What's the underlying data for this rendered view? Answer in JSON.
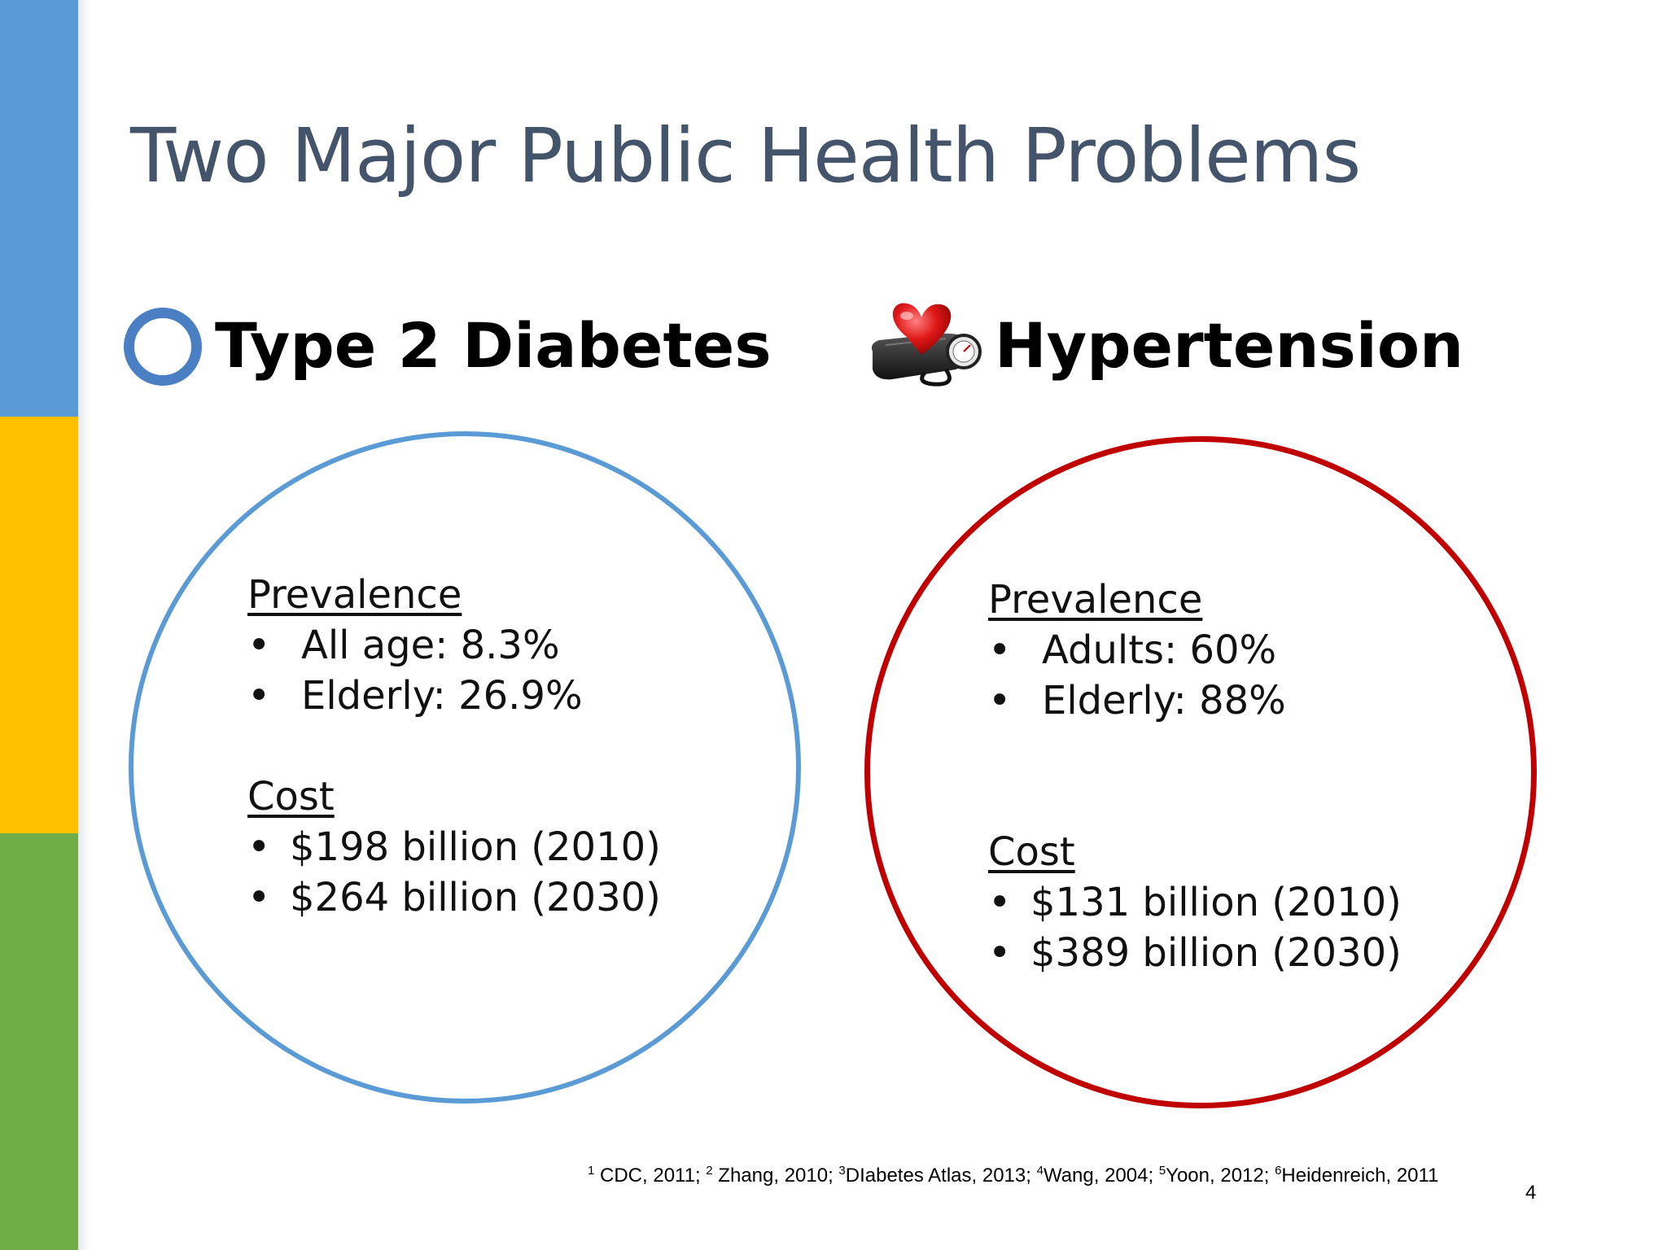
{
  "slide": {
    "title": "Two Major Public Health Problems",
    "colors": {
      "bar_top": "#5b9bd5",
      "bar_middle": "#ffc000",
      "bar_bottom": "#70ad47",
      "title": "#44546a",
      "diabetes_ring": "#5b9bd5",
      "hypertension_ring": "#c00000"
    }
  },
  "diabetes": {
    "heading": "Type 2 Diabetes",
    "icon": "blue-ring-icon",
    "prevalence_label": "Prevalence",
    "prevalence": [
      "All age: 8.3%",
      "Elderly: 26.9%"
    ],
    "cost_label": "Cost",
    "cost": [
      "$198 billion (2010)",
      "$264 billion (2030)"
    ]
  },
  "hypertension": {
    "heading": "Hypertension",
    "icon": "heart-blood-pressure-cuff-icon",
    "prevalence_label": "Prevalence",
    "prevalence": [
      "Adults: 60%",
      "Elderly: 88%"
    ],
    "cost_label": "Cost",
    "cost": [
      "$131 billion (2010)",
      "$389 billion (2030)"
    ]
  },
  "bullet_char": "•",
  "footnote": [
    {
      "sup": "1",
      "text": " CDC, 2011; "
    },
    {
      "sup": "2",
      "text": " Zhang, 2010; "
    },
    {
      "sup": "3",
      "text": "DIabetes Atlas, 2013; "
    },
    {
      "sup": "4",
      "text": "Wang, 2004; "
    },
    {
      "sup": "5",
      "text": "Yoon, 2012; "
    },
    {
      "sup": "6",
      "text": "Heidenreich, 2011"
    }
  ],
  "page_number": "4"
}
